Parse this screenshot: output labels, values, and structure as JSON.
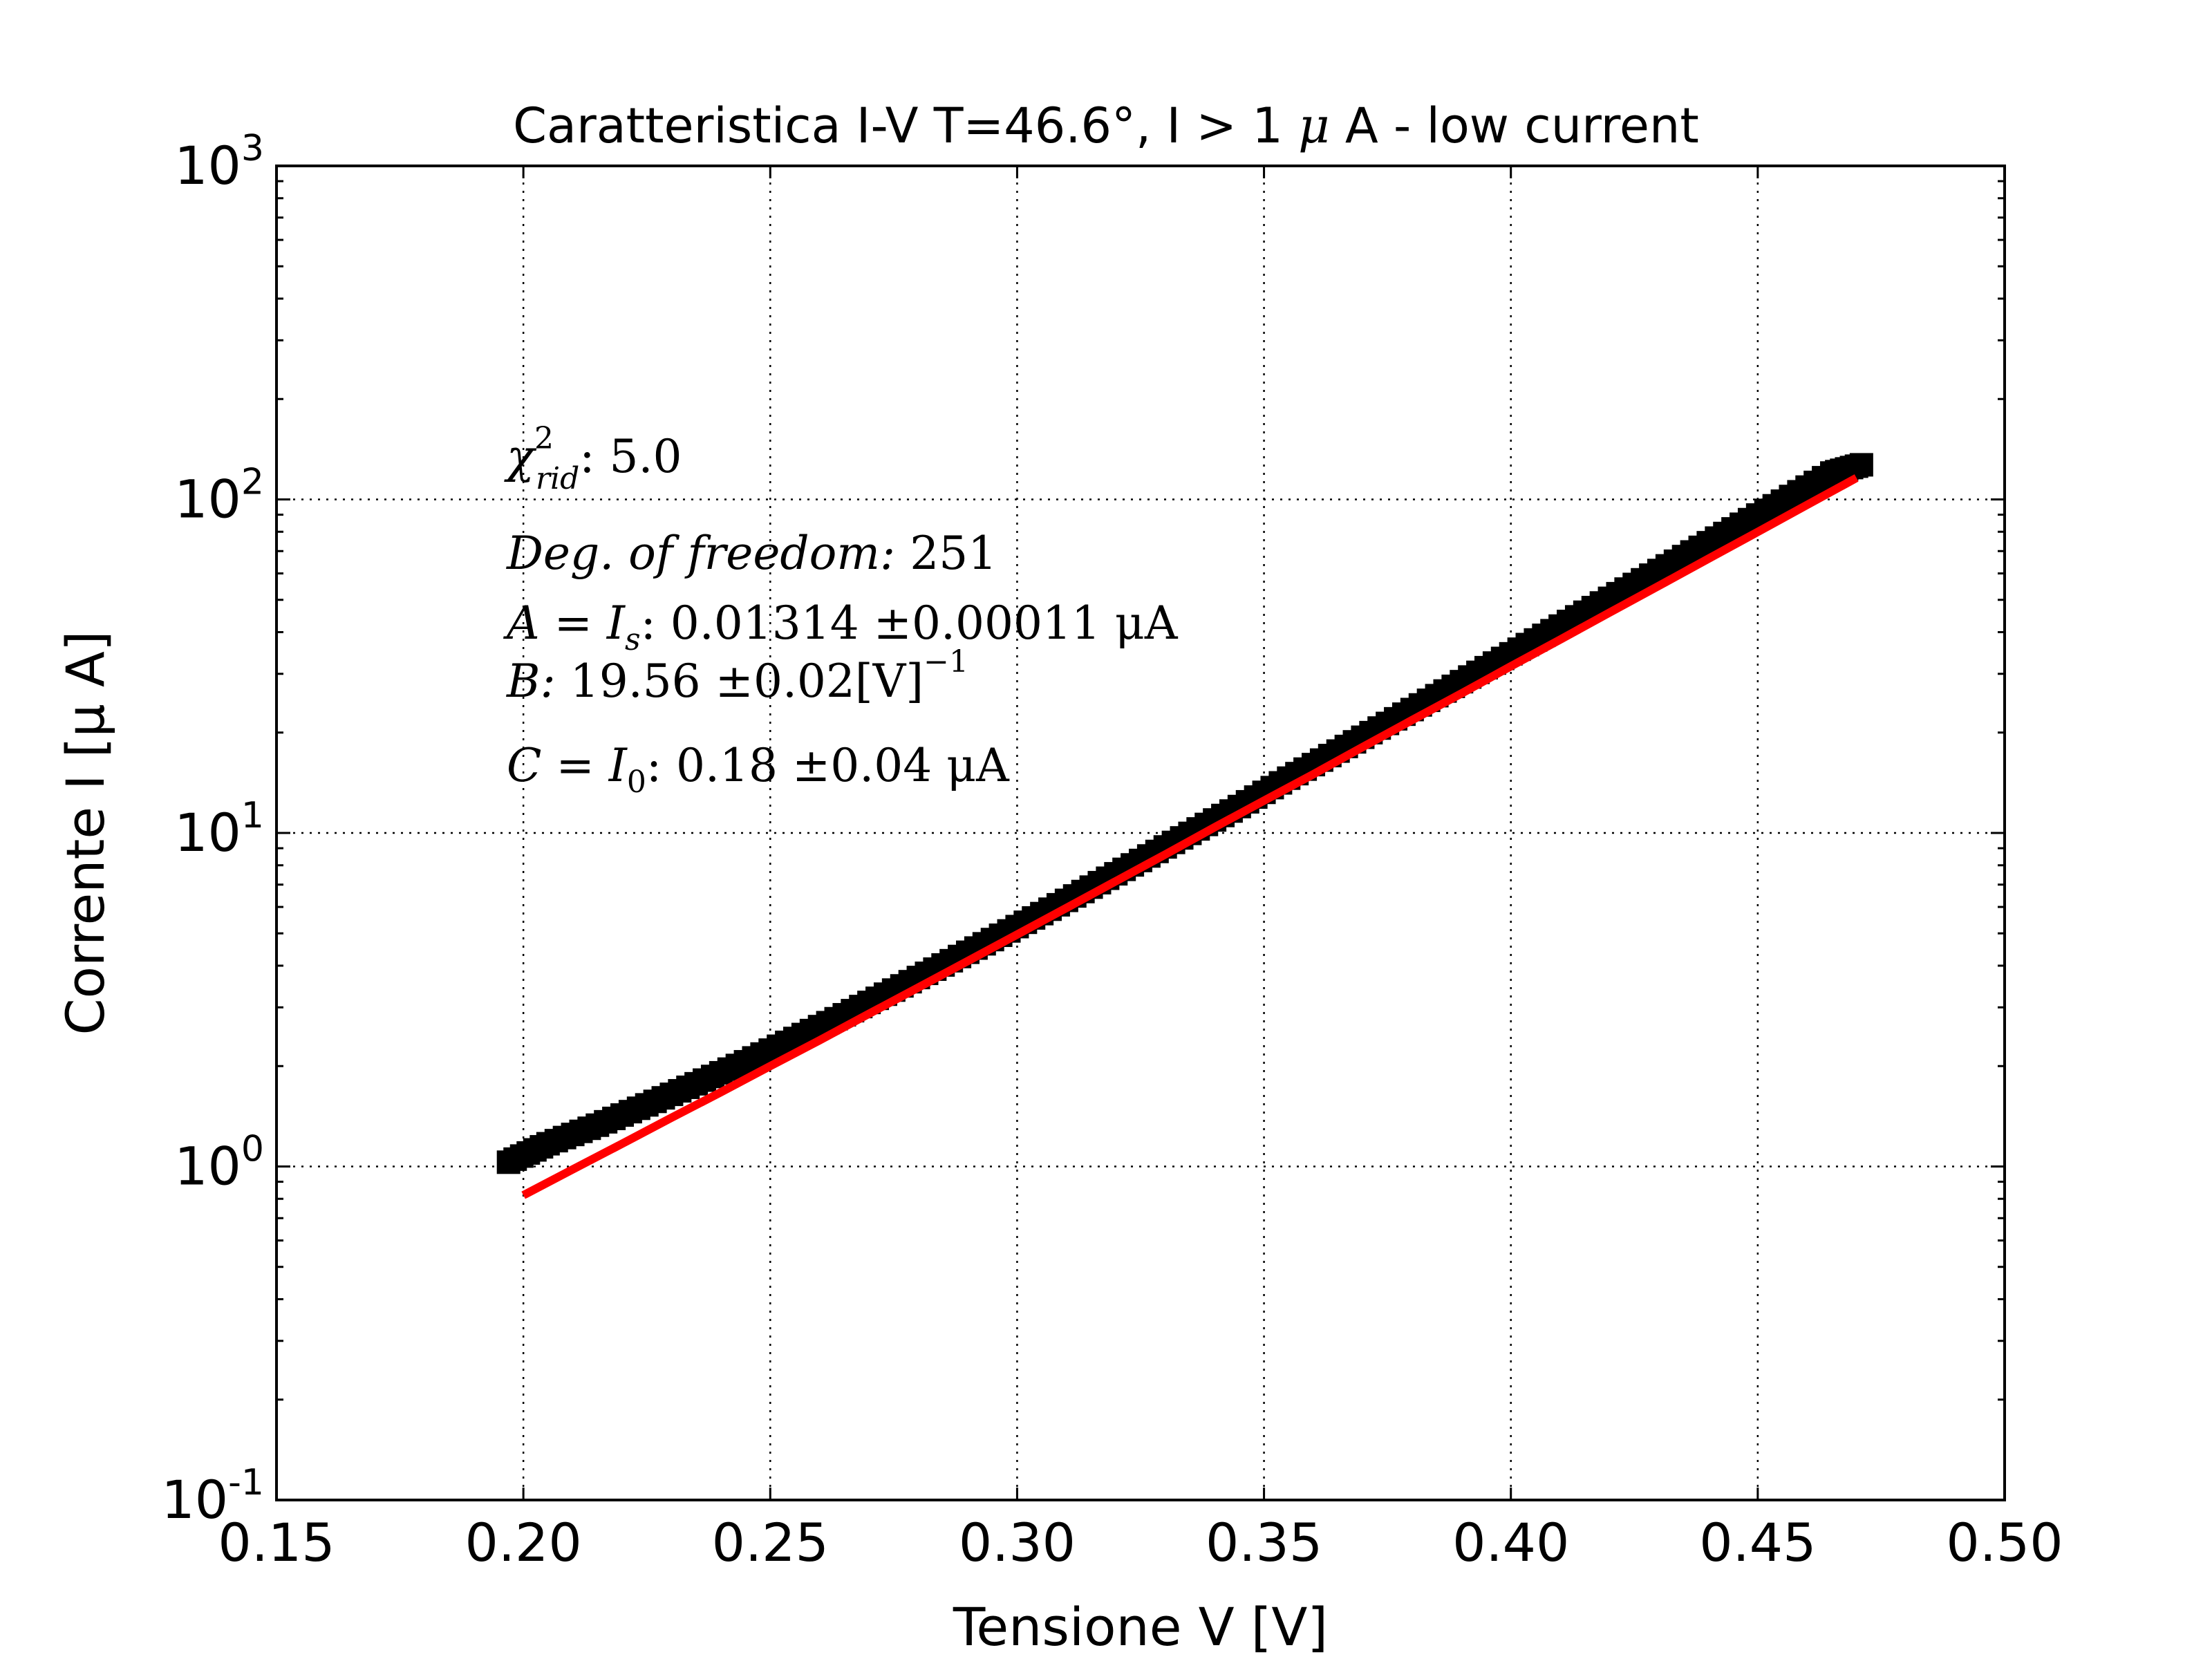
{
  "chart_data": {
    "type": "scatter",
    "title_parts": {
      "pre": "Caratteristica I-V T=46.6°, I > 1 ",
      "mu": "μ",
      "post": " A - low current"
    },
    "xlabel": "Tensione V [V]",
    "ylabel": "Corrente I [μ A]",
    "xlim": [
      0.15,
      0.5
    ],
    "ylim": [
      0.1,
      1000
    ],
    "yscale": "log",
    "grid": true,
    "x_ticks": [
      "0.15",
      "0.20",
      "0.25",
      "0.30",
      "0.35",
      "0.40",
      "0.45",
      "0.50"
    ],
    "y_ticks": [
      {
        "value": 0.1,
        "base": "10",
        "exp": "-1"
      },
      {
        "value": 1,
        "base": "10",
        "exp": "0"
      },
      {
        "value": 10,
        "base": "10",
        "exp": "1"
      },
      {
        "value": 100,
        "base": "10",
        "exp": "2"
      },
      {
        "value": 1000,
        "base": "10",
        "exp": "3"
      }
    ],
    "series": [
      {
        "kind": "markers",
        "color": "#000000",
        "x": [
          0.197,
          0.205,
          0.215,
          0.225,
          0.235,
          0.245,
          0.255,
          0.265,
          0.275,
          0.285,
          0.295,
          0.305,
          0.315,
          0.325,
          0.335,
          0.345,
          0.355,
          0.365,
          0.375,
          0.385,
          0.395,
          0.405,
          0.415,
          0.425,
          0.435,
          0.445,
          0.455,
          0.465,
          0.471
        ],
        "y": [
          1.03,
          1.17,
          1.33,
          1.53,
          1.77,
          2.06,
          2.42,
          2.85,
          3.38,
          4.02,
          4.79,
          5.73,
          6.88,
          8.27,
          9.97,
          12.0,
          14.6,
          17.6,
          21.3,
          25.8,
          31.3,
          37.9,
          45.9,
          55.6,
          67.4,
          81.6,
          98.8,
          120.0,
          127.0
        ]
      },
      {
        "kind": "fit-line",
        "color": "#ff0000",
        "x": [
          0.2,
          0.21,
          0.22,
          0.23,
          0.24,
          0.25,
          0.26,
          0.27,
          0.28,
          0.29,
          0.3,
          0.31,
          0.32,
          0.33,
          0.34,
          0.35,
          0.36,
          0.37,
          0.38,
          0.39,
          0.4,
          0.41,
          0.42,
          0.43,
          0.44,
          0.45,
          0.46,
          0.47
        ],
        "y": [
          0.82,
          0.98,
          1.17,
          1.4,
          1.67,
          2.0,
          2.39,
          2.87,
          3.44,
          4.13,
          4.96,
          5.96,
          7.17,
          8.62,
          10.4,
          12.5,
          15.0,
          18.1,
          21.8,
          26.2,
          31.6,
          38.0,
          45.8,
          55.1,
          66.4,
          79.9,
          96.3,
          116.0
        ]
      }
    ],
    "annotations": {
      "chi": {
        "sym": "χ",
        "sup": "2",
        "sub": "rid",
        "val": ": 5.0"
      },
      "dof": {
        "label": "Deg. of freedom:",
        "val": " 251"
      },
      "a": {
        "label": "A = I",
        "sub": "s",
        "val": ": 0.01314 ±0.00011   μA"
      },
      "b": {
        "label": "B:",
        "val": " 19.56 ±0.02[V]",
        "sup": "−1"
      },
      "c": {
        "label": "C = I",
        "sub": "0",
        "val": ": 0.18 ±0.04   μA"
      }
    }
  }
}
